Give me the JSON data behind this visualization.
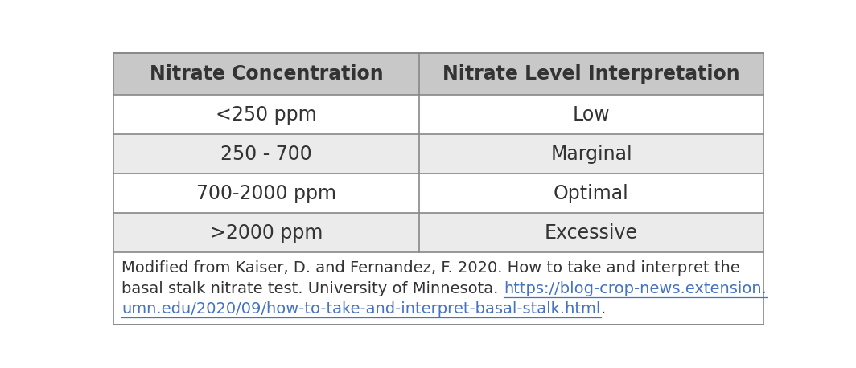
{
  "header_row": [
    "Nitrate Concentration",
    "Nitrate Level Interpretation"
  ],
  "data_rows": [
    [
      "<250 ppm",
      "Low"
    ],
    [
      "250 - 700",
      "Marginal"
    ],
    [
      "700-2000 ppm",
      "Optimal"
    ],
    [
      ">2000 ppm",
      "Excessive"
    ]
  ],
  "line1": "Modified from Kaiser, D. and Fernandez, F. 2020. How to take and interpret the",
  "line2_plain": "basal stalk nitrate test. University of Minnesota. ",
  "url_part1": "https://blog-crop-news.extension.",
  "url_part2": "umn.edu/2020/09/how-to-take-and-interpret-basal-stalk.html",
  "footer_suffix": ".",
  "header_bg": "#c8c8c8",
  "row_bg_odd": "#ffffff",
  "row_bg_even": "#ebebeb",
  "footer_bg": "#ffffff",
  "border_color": "#888888",
  "header_font_size": 17,
  "body_font_size": 17,
  "footer_font_size": 14,
  "col_split": 0.47,
  "figure_width": 10.64,
  "figure_height": 4.58
}
